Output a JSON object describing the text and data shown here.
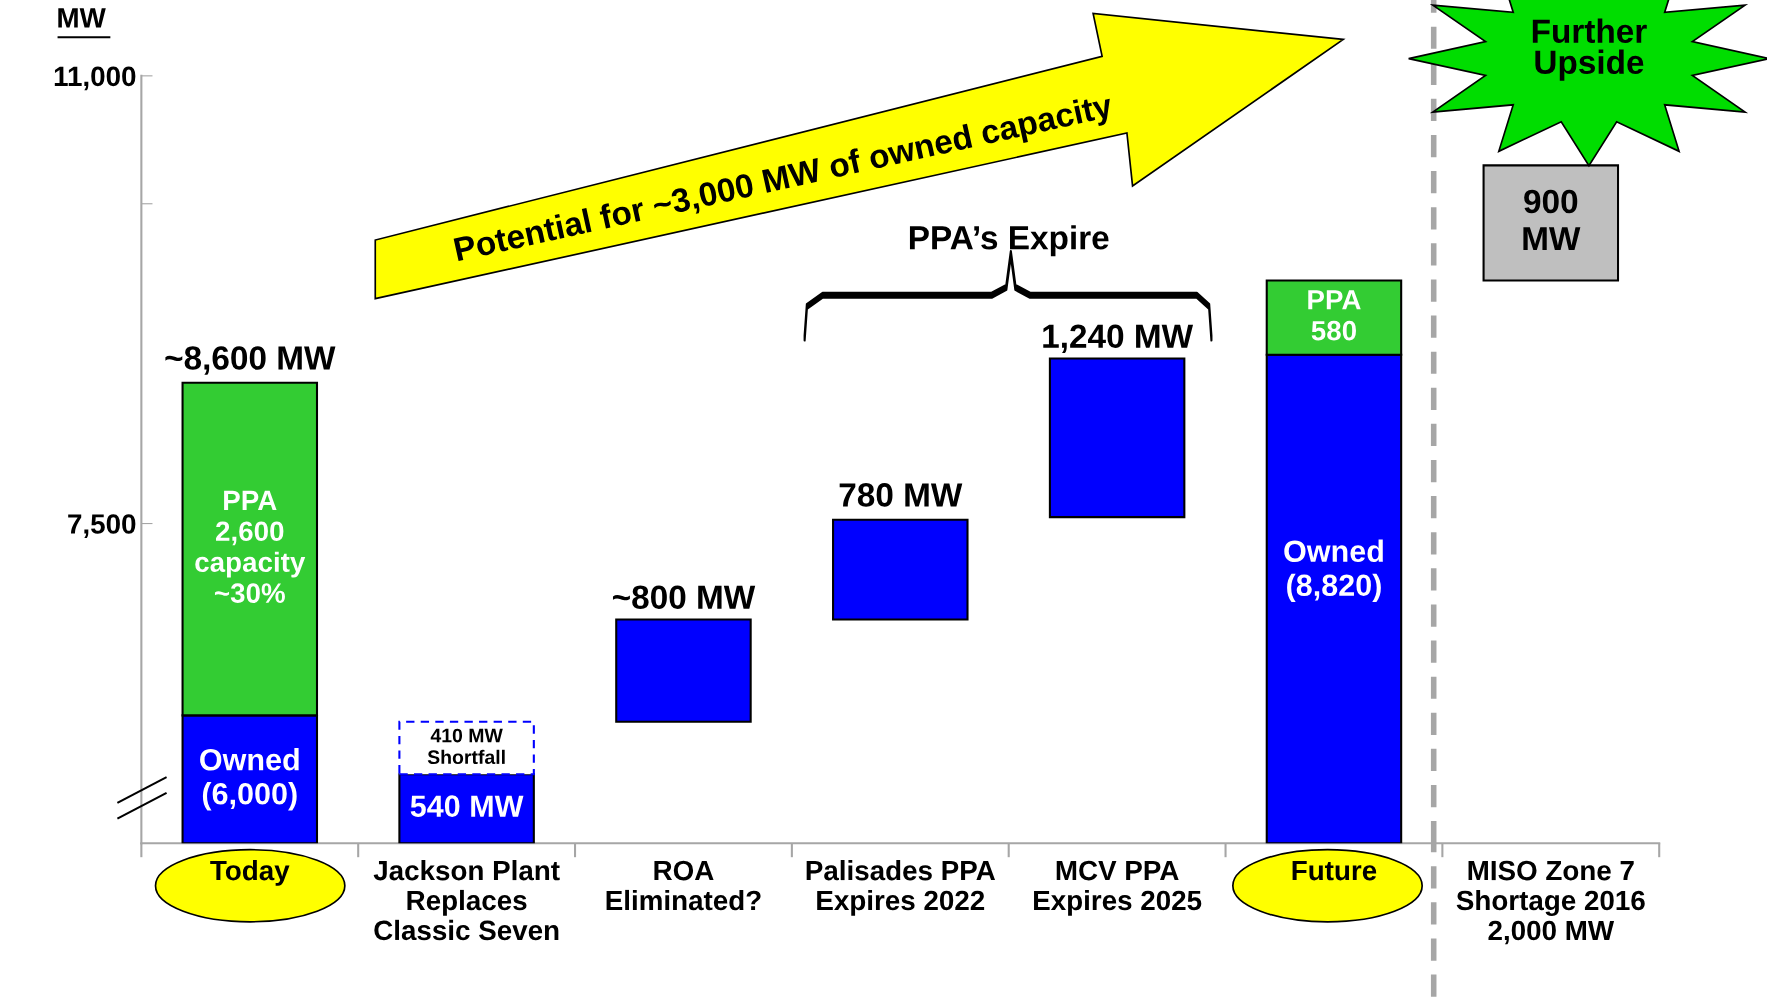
{
  "chart_data": {
    "type": "bar",
    "ylabel": "MW",
    "categories": [
      "Today",
      "Jackson Plant\nReplaces\nClassic Seven",
      "ROA\nEliminated?",
      "Palisades PPA\nExpires 2022",
      "MCV PPA\nExpires 2025",
      "Future",
      "MISO Zone 7\nShortage 2016\n2,000 MW"
    ],
    "series": [
      {
        "color": "#0000ff",
        "base": [
          5000,
          5000,
          5950,
          6750,
          7550,
          5000,
          null
        ],
        "values": [
          1000,
          540,
          800,
          780,
          1240,
          3820,
          null
        ]
      },
      {
        "color": "#33cc33",
        "base": [
          6000,
          null,
          null,
          null,
          null,
          8820,
          null
        ],
        "values": [
          2600,
          null,
          null,
          null,
          null,
          580,
          null
        ]
      },
      {
        "color": "#0000ff",
        "line_style": "dashed",
        "base": [
          null,
          5540,
          null,
          null,
          null,
          null,
          null
        ],
        "values": [
          null,
          410,
          null,
          null,
          null,
          null,
          null
        ]
      },
      {
        "color": "#bfbfbf",
        "base": [
          null,
          null,
          null,
          null,
          null,
          null,
          9400
        ],
        "values": [
          null,
          null,
          null,
          null,
          null,
          null,
          900
        ]
      }
    ],
    "ylim": [
      5000,
      11000
    ],
    "yticks": [
      {
        "value": 10000,
        "label": null
      },
      {
        "value": 7500,
        "label": "7,500"
      },
      {
        "value": 11000,
        "label": "11,000"
      }
    ],
    "annotations": [
      "~8,600 MW",
      "PPA\n2,600\ncapacity\n~30%",
      "Owned\n(6,000)",
      "410 MW\nShortfall",
      "540 MW",
      "~800 MW",
      "780 MW",
      "1,240 MW",
      "PPA\n580",
      "Owned\n(8,820)",
      "900\nMW",
      "PPA’s Expire",
      "Potential for ~3,000 MW of owned capacity",
      "Further\nUpside"
    ],
    "grid": false,
    "legend": false
  }
}
